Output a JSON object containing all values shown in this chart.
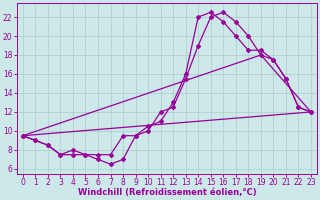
{
  "background_color": "#cce8e8",
  "grid_color": "#aacccc",
  "line_color": "#990099",
  "marker": "D",
  "marker_size": 2.0,
  "linewidth": 0.9,
  "xlabel": "Windchill (Refroidissement éolien,°C)",
  "xlabel_fontsize": 6.0,
  "tick_fontsize": 5.5,
  "xlim": [
    -0.5,
    23.5
  ],
  "ylim": [
    5.5,
    23.5
  ],
  "yticks": [
    6,
    8,
    10,
    12,
    14,
    16,
    18,
    20,
    22
  ],
  "xticks": [
    0,
    1,
    2,
    3,
    4,
    5,
    6,
    7,
    8,
    9,
    10,
    11,
    12,
    13,
    14,
    15,
    16,
    17,
    18,
    19,
    20,
    21,
    22,
    23
  ],
  "line1_x": [
    0,
    1,
    2,
    3,
    4,
    5,
    6,
    7,
    8,
    9,
    10,
    11,
    12,
    13,
    14,
    15,
    16,
    17,
    18,
    19,
    20,
    21,
    22,
    23
  ],
  "line1_y": [
    9.5,
    9.0,
    8.5,
    7.5,
    7.5,
    7.5,
    7.0,
    6.5,
    7.0,
    9.5,
    10.0,
    12.0,
    12.5,
    15.5,
    19.0,
    22.0,
    22.5,
    21.5,
    20.0,
    18.0,
    17.5,
    15.5,
    12.5,
    12.0
  ],
  "line2_x": [
    0,
    1,
    2,
    3,
    4,
    5,
    6,
    7,
    8,
    9,
    10,
    11,
    12,
    13,
    14,
    15,
    16,
    17,
    18,
    19,
    20,
    21,
    22,
    23
  ],
  "line2_y": [
    9.5,
    9.0,
    8.5,
    7.5,
    8.0,
    7.5,
    7.5,
    7.5,
    9.5,
    9.5,
    10.5,
    11.0,
    13.0,
    16.0,
    22.0,
    22.5,
    21.5,
    20.0,
    18.5,
    18.5,
    17.5,
    15.5,
    12.5,
    12.0
  ],
  "line3_x": [
    0,
    23
  ],
  "line3_y": [
    9.5,
    12.0
  ],
  "line4_x": [
    0,
    19,
    23
  ],
  "line4_y": [
    9.5,
    18.0,
    12.0
  ]
}
